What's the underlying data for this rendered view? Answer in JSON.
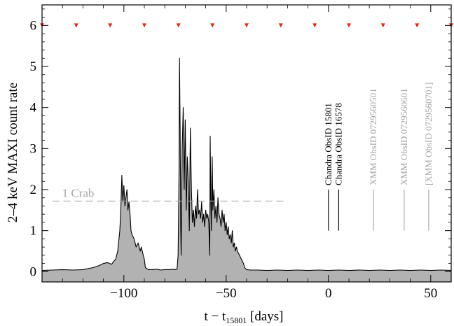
{
  "chart_data": {
    "type": "area",
    "xlabel_main": "t − t",
    "xlabel_sub": "15801",
    "xlabel_unit": " [days]",
    "ylabel": "2–4 keV MAXI count rate",
    "xlim": [
      -140,
      60
    ],
    "ylim": [
      -0.25,
      6.5
    ],
    "x_ticks": [
      -100,
      -50,
      0,
      50
    ],
    "x_tick_labels": [
      "−100",
      "−50",
      "0",
      "50"
    ],
    "y_ticks": [
      0,
      1,
      2,
      3,
      4,
      5,
      6
    ],
    "y_tick_labels": [
      "0",
      "1",
      "2",
      "3",
      "4",
      "5",
      "6"
    ],
    "series": [
      {
        "x": [
          -140,
          -135,
          -130,
          -125,
          -120,
          -115,
          -112,
          -110,
          -108,
          -106,
          -105,
          -104,
          -103,
          -102,
          -101.5,
          -101,
          -100.5,
          -100,
          -99.5,
          -99,
          -98.5,
          -98,
          -97.5,
          -97,
          -96.5,
          -96,
          -95,
          -94,
          -93,
          -92,
          -91.5,
          -91,
          -90.5,
          -90,
          -89.5,
          -88,
          -86,
          -84,
          -82,
          -80,
          -78,
          -76,
          -75,
          -74,
          -73.5,
          -73,
          -72.8,
          -72.5,
          -72.2,
          -72,
          -71.5,
          -71,
          -70.5,
          -70,
          -69.5,
          -69,
          -68.5,
          -68,
          -67.5,
          -67,
          -66.5,
          -66,
          -65.5,
          -65,
          -64.5,
          -64,
          -63.5,
          -63,
          -62.5,
          -62,
          -61.5,
          -61,
          -60.5,
          -60,
          -59.5,
          -59,
          -58.5,
          -58,
          -57.8,
          -57.5,
          -57.2,
          -57,
          -56.8,
          -56.5,
          -56,
          -55.5,
          -55,
          -54.5,
          -54,
          -53.5,
          -53,
          -52.5,
          -52,
          -51.5,
          -51,
          -50.5,
          -50,
          -49.5,
          -49,
          -48.5,
          -48,
          -47.5,
          -47,
          -46.5,
          -46,
          -45.5,
          -45,
          -44.5,
          -44,
          -43.5,
          -43,
          -42.5,
          -42,
          -41.5,
          -41,
          -40,
          -38,
          -35,
          -30,
          -25,
          -20,
          -15,
          -10,
          -5,
          0,
          5,
          10,
          15,
          20,
          25,
          30,
          35,
          40,
          45,
          50,
          55,
          60
        ],
        "y": [
          0.03,
          0.04,
          0.05,
          0.04,
          0.05,
          0.1,
          0.15,
          0.2,
          0.22,
          0.18,
          0.25,
          0.3,
          0.5,
          1.0,
          1.5,
          2.35,
          1.7,
          2.1,
          1.6,
          1.8,
          2.0,
          1.5,
          1.7,
          1.4,
          1.0,
          0.9,
          0.8,
          0.6,
          0.7,
          0.5,
          0.6,
          0.5,
          0.4,
          0.3,
          0.1,
          0.05,
          0.05,
          0.06,
          0.04,
          0.05,
          0.05,
          0.06,
          0.05,
          0.06,
          0.4,
          2.5,
          5.2,
          3.5,
          1.0,
          0.4,
          3.0,
          4.0,
          2.0,
          3.7,
          1.5,
          2.8,
          2.2,
          1.0,
          3.5,
          2.0,
          1.2,
          1.5,
          1.1,
          1.6,
          1.3,
          2.0,
          1.4,
          1.5,
          1.3,
          1.7,
          1.2,
          1.4,
          1.1,
          1.5,
          1.3,
          1.4,
          1.2,
          0.4,
          3.3,
          1.8,
          1.0,
          2.3,
          2.8,
          1.5,
          2.0,
          1.3,
          1.6,
          1.2,
          1.8,
          1.4,
          1.3,
          1.1,
          1.5,
          1.2,
          1.4,
          1.0,
          1.2,
          0.9,
          1.1,
          0.8,
          0.9,
          0.7,
          1.0,
          0.6,
          0.7,
          0.5,
          0.6,
          0.5,
          0.45,
          0.4,
          0.35,
          0.3,
          0.25,
          0.2,
          0.1,
          0.05,
          0.04,
          0.04,
          0.03,
          0.04,
          0.03,
          0.04,
          0.03,
          0.04,
          0.03,
          0.04,
          0.03,
          0.04,
          0.03,
          0.04,
          0.03,
          0.04,
          0.03,
          0.04,
          0.03,
          0.04,
          0.03
        ]
      }
    ],
    "reference_lines": [
      {
        "label": "1 Crab",
        "y": 1.72,
        "x_from": -135,
        "x_to": -20,
        "style": "dashed",
        "color": "#a6a6a6"
      }
    ],
    "markers": {
      "y": 6.0,
      "x": [
        -140,
        -123.3,
        -106.7,
        -90,
        -73.3,
        -56.7,
        -40,
        -23.3,
        -6.7,
        10,
        26.7,
        43.3,
        60
      ],
      "color": "#e8251c"
    },
    "annotations": [
      {
        "text": "Chandra ObsID 15801",
        "x": 0,
        "color": "#000000"
      },
      {
        "text": "Chandra ObsID 16578",
        "x": 5,
        "color": "#000000"
      },
      {
        "text": "XMM ObsID 0729560501",
        "x": 22,
        "color": "#a6a6a6"
      },
      {
        "text": "XMM ObsID 0729560601",
        "x": 37,
        "color": "#a6a6a6"
      },
      {
        "text": "[XMM ObsID 0729560701]",
        "x": 49,
        "color": "#a6a6a6"
      }
    ],
    "annotation_line_range": [
      1.0,
      2.0
    ],
    "colors": {
      "fill": "#b2b2b2",
      "line": "#000000",
      "axis": "#000000"
    }
  }
}
